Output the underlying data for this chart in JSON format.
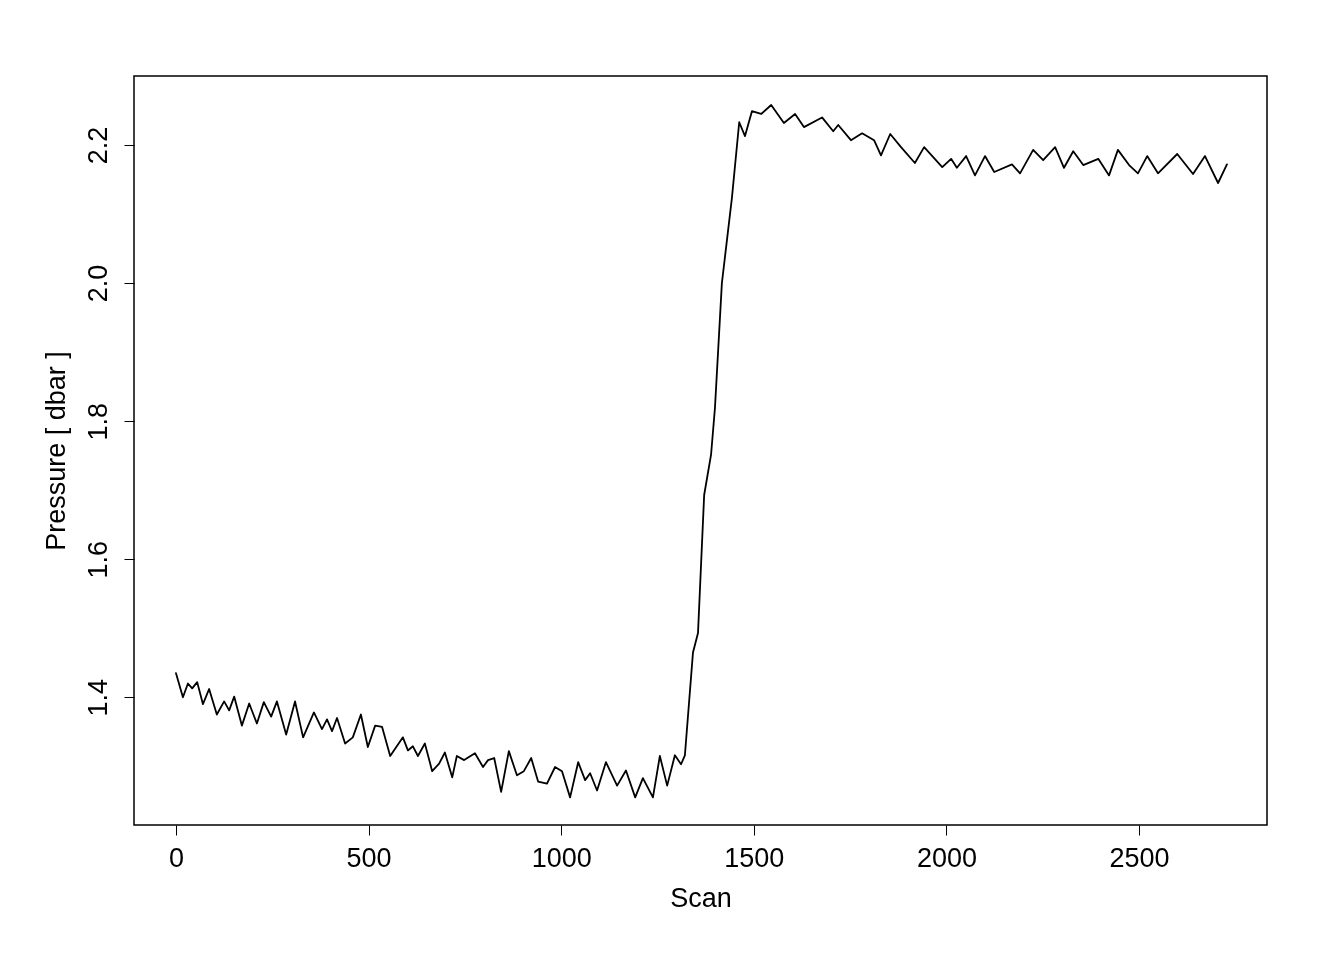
{
  "chart_data": {
    "type": "line",
    "xlabel": "Scan",
    "ylabel": "Pressure [ dbar ]",
    "xlim": [
      -109,
      2832
    ],
    "ylim": [
      1.215,
      2.3
    ],
    "xticks": [
      0,
      500,
      1000,
      1500,
      2000,
      2500
    ],
    "yticks": [
      1.4,
      1.6,
      1.8,
      {
        "value": 2,
        "label": "2.0"
      },
      2.2
    ],
    "series": [
      {
        "color": "#000000",
        "x": [
          0,
          18,
          31,
          42,
          55,
          70,
          86,
          106,
          125,
          138,
          151,
          171,
          190,
          210,
          228,
          247,
          262,
          286,
          309,
          330,
          358,
          379,
          392,
          405,
          418,
          439,
          459,
          480,
          498,
          517,
          535,
          556,
          589,
          602,
          615,
          628,
          646,
          665,
          683,
          698,
          717,
          729,
          748,
          776,
          797,
          810,
          826,
          844,
          864,
          885,
          903,
          922,
          940,
          963,
          984,
          1002,
          1023,
          1044,
          1062,
          1075,
          1093,
          1116,
          1145,
          1168,
          1192,
          1212,
          1238,
          1256,
          1275,
          1295,
          1311,
          1321,
          1342,
          1355,
          1371,
          1389,
          1399,
          1417,
          1443,
          1462,
          1477,
          1495,
          1519,
          1545,
          1578,
          1607,
          1630,
          1677,
          1706,
          1719,
          1752,
          1781,
          1812,
          1830,
          1854,
          1882,
          1918,
          1942,
          1989,
          2012,
          2027,
          2051,
          2074,
          2100,
          2124,
          2170,
          2191,
          2225,
          2251,
          2282,
          2305,
          2329,
          2355,
          2394,
          2422,
          2445,
          2474,
          2497,
          2521,
          2549,
          2599,
          2640,
          2671,
          2705,
          2728
        ],
        "values": [
          1.435,
          1.4,
          1.42,
          1.413,
          1.422,
          1.39,
          1.412,
          1.375,
          1.394,
          1.381,
          1.401,
          1.359,
          1.391,
          1.362,
          1.393,
          1.372,
          1.394,
          1.346,
          1.394,
          1.342,
          1.378,
          1.354,
          1.368,
          1.351,
          1.37,
          1.333,
          1.342,
          1.375,
          1.328,
          1.359,
          1.357,
          1.315,
          1.342,
          1.323,
          1.329,
          1.315,
          1.333,
          1.293,
          1.304,
          1.32,
          1.284,
          1.315,
          1.309,
          1.319,
          1.299,
          1.309,
          1.312,
          1.263,
          1.322,
          1.287,
          1.293,
          1.312,
          1.278,
          1.275,
          1.299,
          1.293,
          1.255,
          1.306,
          1.28,
          1.29,
          1.265,
          1.306,
          1.272,
          1.294,
          1.255,
          1.283,
          1.255,
          1.315,
          1.272,
          1.316,
          1.303,
          1.316,
          1.465,
          1.493,
          1.693,
          1.752,
          1.819,
          2.0,
          2.123,
          2.233,
          2.213,
          2.249,
          2.245,
          2.258,
          2.232,
          2.245,
          2.226,
          2.24,
          2.22,
          2.229,
          2.207,
          2.217,
          2.207,
          2.185,
          2.216,
          2.197,
          2.174,
          2.197,
          2.168,
          2.18,
          2.167,
          2.184,
          2.156,
          2.184,
          2.161,
          2.172,
          2.159,
          2.193,
          2.178,
          2.197,
          2.167,
          2.191,
          2.171,
          2.18,
          2.156,
          2.193,
          2.171,
          2.159,
          2.184,
          2.159,
          2.187,
          2.158,
          2.184,
          2.145,
          2.172
        ]
      }
    ]
  }
}
